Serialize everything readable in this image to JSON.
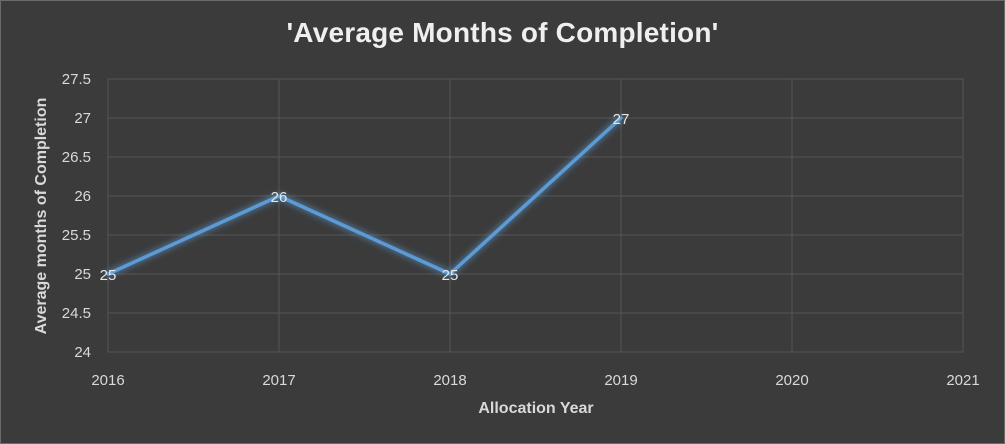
{
  "chart_data": {
    "type": "line",
    "title": "'Average Months of Completion'",
    "xlabel": "Allocation Year",
    "ylabel": "Average months of Completion",
    "categories": [
      "2016",
      "2017",
      "2018",
      "2019",
      "2020",
      "2021"
    ],
    "series": [
      {
        "values": [
          25,
          26,
          25,
          27,
          null,
          null
        ],
        "data_labels": [
          "25",
          "26",
          "25",
          "27",
          "",
          ""
        ],
        "color": "#5b9bd5"
      }
    ],
    "ylim": [
      24,
      27.5
    ],
    "y_ticks": [
      "24",
      "24.5",
      "25",
      "25.5",
      "26",
      "26.5",
      "27",
      "27.5"
    ],
    "grid": true,
    "legend": "none",
    "colors": {
      "background": "#3b3b3b",
      "gridline": "#555555",
      "text": "#d9d9d9",
      "line": "#5b9bd5"
    }
  }
}
